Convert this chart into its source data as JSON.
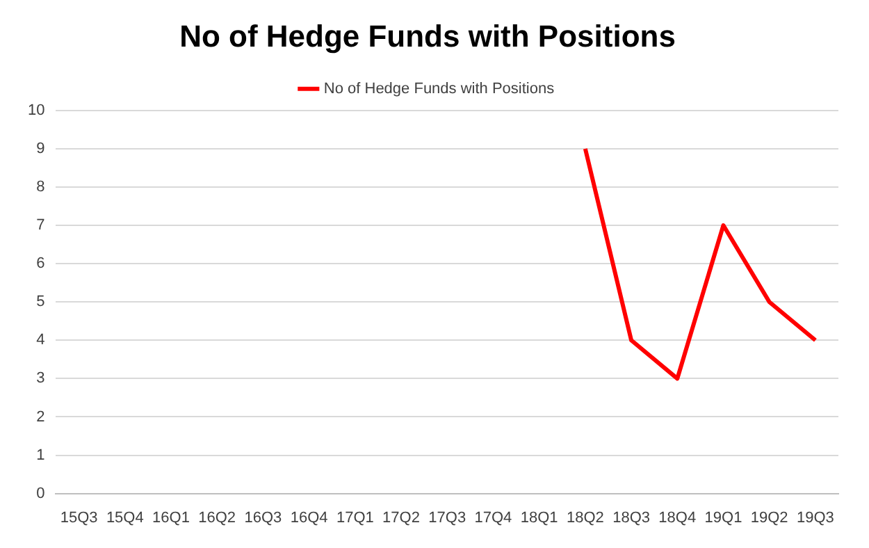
{
  "chart_data": {
    "type": "line",
    "title": "No of Hedge Funds with Positions",
    "categories": [
      "15Q3",
      "15Q4",
      "16Q1",
      "16Q2",
      "16Q3",
      "16Q4",
      "17Q1",
      "17Q2",
      "17Q3",
      "17Q4",
      "18Q1",
      "18Q2",
      "18Q3",
      "18Q4",
      "19Q1",
      "19Q2",
      "19Q3"
    ],
    "series": [
      {
        "name": "No of Hedge Funds with Positions",
        "color": "#ff0000",
        "values": [
          null,
          null,
          null,
          null,
          null,
          null,
          null,
          null,
          null,
          null,
          null,
          9,
          4,
          3,
          7,
          5,
          4
        ]
      }
    ],
    "ylim": [
      0,
      10
    ],
    "yticks": [
      0,
      1,
      2,
      3,
      4,
      5,
      6,
      7,
      8,
      9,
      10
    ],
    "grid": "y",
    "legend": "top",
    "marker": "none",
    "line_style": "solid"
  }
}
